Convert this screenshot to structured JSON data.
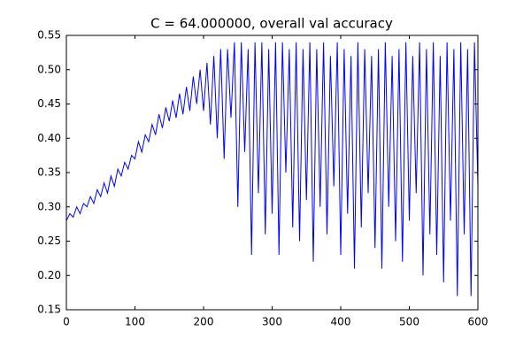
{
  "chart_data": {
    "type": "line",
    "title": "C = 64.000000, overall val accuracy",
    "x": [
      0,
      5,
      10,
      15,
      20,
      25,
      30,
      35,
      40,
      45,
      50,
      55,
      60,
      65,
      70,
      75,
      80,
      85,
      90,
      95,
      100,
      105,
      110,
      115,
      120,
      125,
      130,
      135,
      140,
      145,
      150,
      155,
      160,
      165,
      170,
      175,
      180,
      185,
      190,
      195,
      200,
      205,
      210,
      215,
      220,
      225,
      230,
      235,
      240,
      245,
      250,
      255,
      260,
      265,
      270,
      275,
      280,
      285,
      290,
      295,
      300,
      305,
      310,
      315,
      320,
      325,
      330,
      335,
      340,
      345,
      350,
      355,
      360,
      365,
      370,
      375,
      380,
      385,
      390,
      395,
      400,
      405,
      410,
      415,
      420,
      425,
      430,
      435,
      440,
      445,
      450,
      455,
      460,
      465,
      470,
      475,
      480,
      485,
      490,
      495,
      500,
      505,
      510,
      515,
      520,
      525,
      530,
      535,
      540,
      545,
      550,
      555,
      560,
      565,
      570,
      575,
      580,
      585,
      590,
      595,
      600
    ],
    "series": [
      {
        "color": "#0000ff",
        "values": [
          0.28,
          0.29,
          0.285,
          0.3,
          0.29,
          0.305,
          0.3,
          0.315,
          0.305,
          0.325,
          0.315,
          0.335,
          0.32,
          0.345,
          0.33,
          0.355,
          0.345,
          0.365,
          0.355,
          0.375,
          0.37,
          0.395,
          0.38,
          0.405,
          0.395,
          0.42,
          0.405,
          0.435,
          0.415,
          0.445,
          0.425,
          0.455,
          0.43,
          0.465,
          0.435,
          0.475,
          0.44,
          0.49,
          0.45,
          0.5,
          0.44,
          0.51,
          0.42,
          0.52,
          0.4,
          0.53,
          0.37,
          0.53,
          0.43,
          0.54,
          0.3,
          0.54,
          0.38,
          0.53,
          0.23,
          0.54,
          0.32,
          0.54,
          0.26,
          0.53,
          0.29,
          0.54,
          0.23,
          0.54,
          0.35,
          0.53,
          0.27,
          0.54,
          0.25,
          0.53,
          0.31,
          0.54,
          0.22,
          0.53,
          0.3,
          0.54,
          0.26,
          0.52,
          0.33,
          0.54,
          0.23,
          0.53,
          0.29,
          0.52,
          0.21,
          0.54,
          0.27,
          0.53,
          0.32,
          0.52,
          0.24,
          0.53,
          0.21,
          0.54,
          0.3,
          0.52,
          0.25,
          0.53,
          0.22,
          0.54,
          0.28,
          0.52,
          0.32,
          0.54,
          0.2,
          0.53,
          0.26,
          0.54,
          0.23,
          0.52,
          0.19,
          0.54,
          0.28,
          0.53,
          0.17,
          0.54,
          0.26,
          0.53,
          0.17,
          0.54,
          0.33
        ]
      }
    ],
    "xlim": [
      0,
      600
    ],
    "xticks": [
      0,
      100,
      200,
      300,
      400,
      500,
      600
    ],
    "ylim": [
      0.15,
      0.55
    ],
    "yticks": [
      0.15,
      {
        "value": 0.2,
        "label": "0.20"
      },
      0.25,
      {
        "value": 0.3,
        "label": "0.30"
      },
      0.35,
      {
        "value": 0.4,
        "label": "0.40"
      },
      0.45,
      {
        "value": 0.5,
        "label": "0.50"
      },
      0.55
    ]
  }
}
